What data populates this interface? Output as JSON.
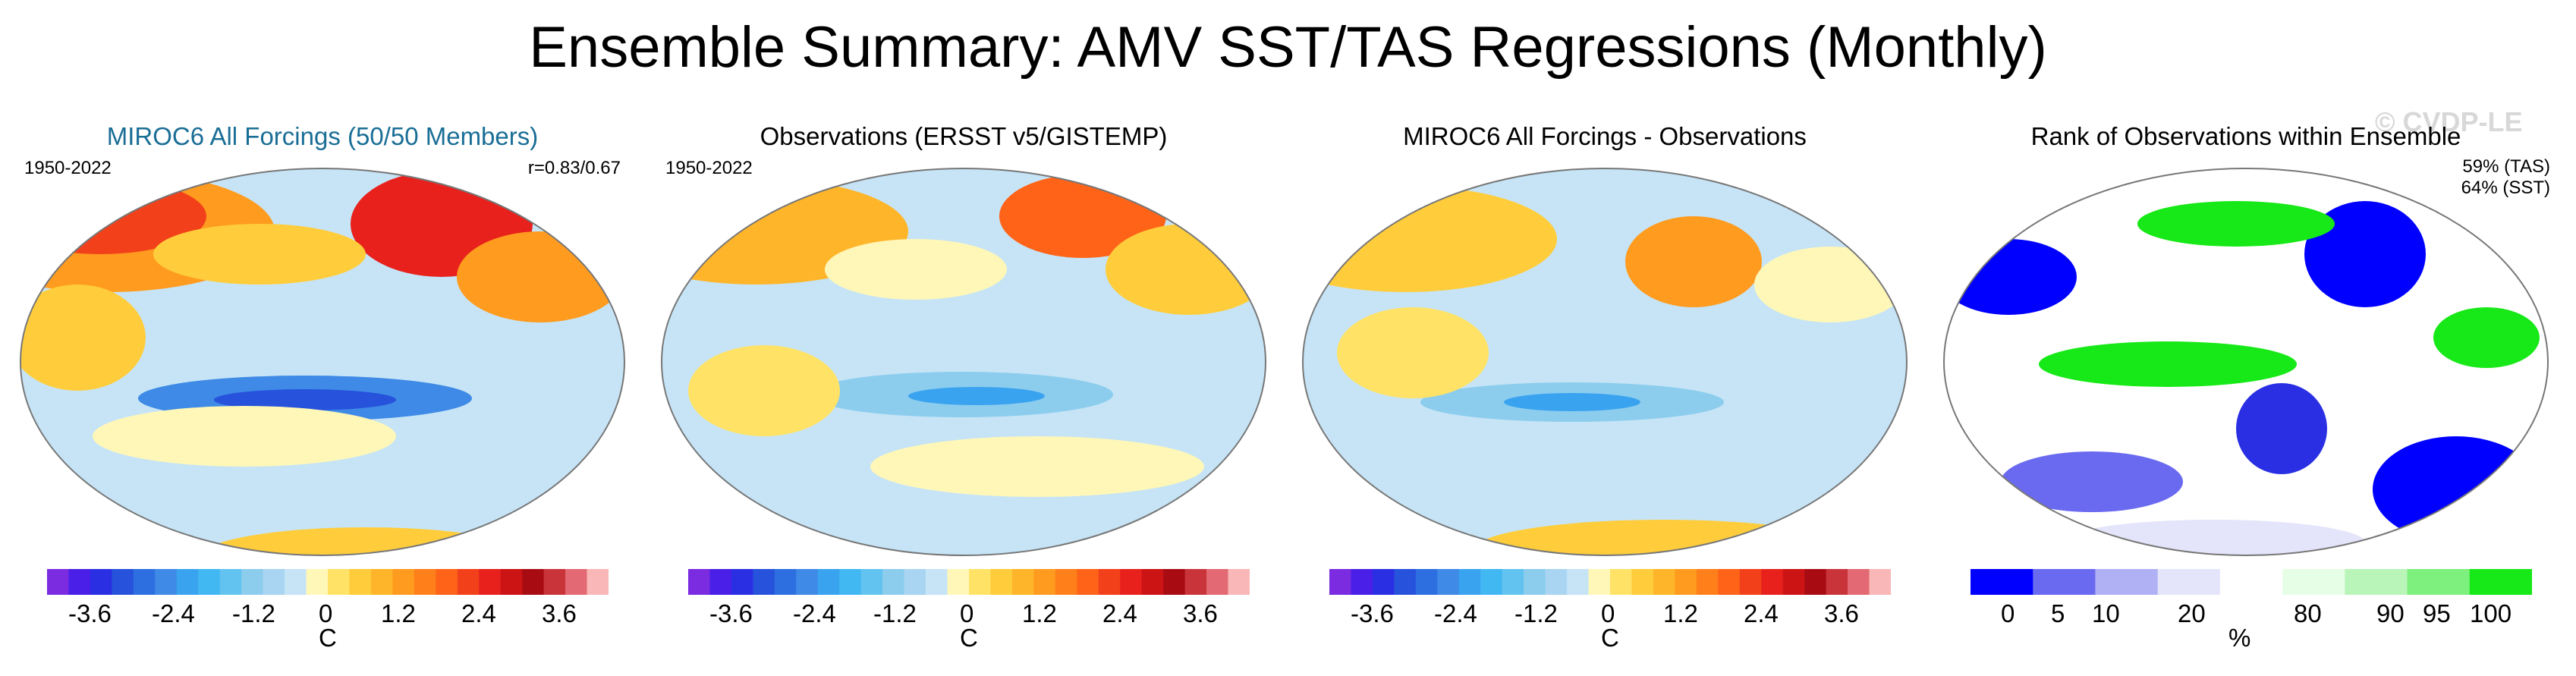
{
  "figure": {
    "title": "Ensemble Summary: AMV SST/TAS Regressions (Monthly)",
    "watermark": "© CVDP-LE"
  },
  "chart_data": [
    {
      "type": "heatmap",
      "title": "MIROC6 All Forcings (50/50 Members)",
      "period": "1950-2022",
      "annotation": "r=0.83/0.67",
      "projection": "global map",
      "colorbar": {
        "unit": "C",
        "levels": [
          -4.2,
          -3.9,
          -3.6,
          -3.3,
          -3.0,
          -2.7,
          -2.4,
          -2.1,
          -1.8,
          -1.5,
          -1.2,
          -0.9,
          -0.6,
          -0.3,
          0,
          0.3,
          0.6,
          0.9,
          1.2,
          1.5,
          1.8,
          2.1,
          2.4,
          2.7,
          3.0,
          3.3,
          3.6,
          3.9
        ],
        "tick_labels": [
          "-3.6",
          "-2.4",
          "-1.2",
          "0",
          "1.2",
          "2.4",
          "3.6"
        ],
        "colors": [
          "#7b2be0",
          "#4a1fe8",
          "#2a2fe3",
          "#2652dc",
          "#2d6fe0",
          "#3e8ae6",
          "#3aa3ef",
          "#42b8f3",
          "#63c3f0",
          "#8ccdee",
          "#a9d5f2",
          "#c6e4f6",
          "#fff7b8",
          "#ffe266",
          "#ffcd3b",
          "#ffb52a",
          "#ff9b1e",
          "#ff7f1a",
          "#ff6318",
          "#f2411a",
          "#e8211d",
          "#cc1414",
          "#a80c12",
          "#c9343b",
          "#e36a74",
          "#f9b7b7"
        ]
      },
      "features": [
        "strong warm anomalies over North Atlantic and Arctic",
        "cool tongue in equatorial Pacific"
      ]
    },
    {
      "type": "heatmap",
      "title": "Observations (ERSST v5/GISTEMP)",
      "period": "1950-2022",
      "projection": "global map",
      "colorbar": {
        "unit": "C",
        "tick_labels": [
          "-3.6",
          "-2.4",
          "-1.2",
          "0",
          "1.2",
          "2.4",
          "3.6"
        ]
      },
      "features": [
        "warm anomalies over North Atlantic",
        "cool anomalies central Pacific"
      ]
    },
    {
      "type": "heatmap",
      "title": "MIROC6 All Forcings - Observations",
      "projection": "global map",
      "colorbar": {
        "unit": "C",
        "tick_labels": [
          "-3.6",
          "-2.4",
          "-1.2",
          "0",
          "1.2",
          "2.4",
          "3.6"
        ]
      },
      "features": [
        "positive differences over high-latitude land",
        "negative differences tropical Pacific"
      ]
    },
    {
      "type": "heatmap",
      "title": "Rank of Observations within Ensemble",
      "annotations": [
        "59% (TAS)",
        "64% (SST)"
      ],
      "projection": "global map",
      "colorbar": {
        "unit": "%",
        "tick_labels": [
          "0",
          "5",
          "10",
          "20",
          "80",
          "90",
          "95",
          "100"
        ],
        "colors": [
          "#0000ff",
          "#6a6af0",
          "#b0b0f5",
          "#e4e4fb",
          "#ffffff",
          "#e6fde6",
          "#b9f5b9",
          "#7ef07e",
          "#17e817"
        ]
      }
    }
  ]
}
